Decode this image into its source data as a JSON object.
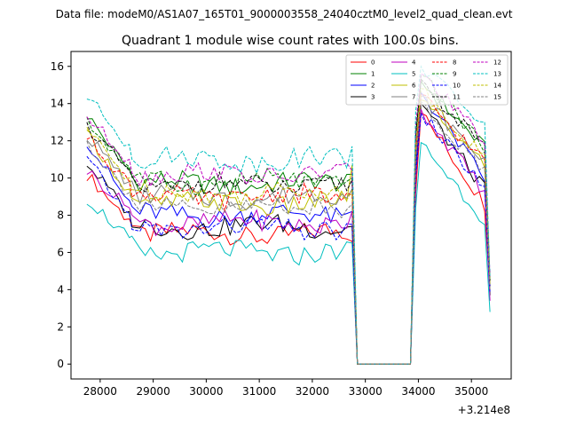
{
  "chart_data": {
    "type": "line",
    "suptitle": "Data file: modeM0/AS1A07_165T01_9000003558_24040cztM0_level2_quad_clean.evt",
    "title": "Quadrant 1 module wise count rates with 100.0s bins.",
    "xlabel": "",
    "ylabel": "",
    "x_offset_label": "+3.214e8",
    "xlim": [
      27450,
      35750
    ],
    "ylim": [
      -0.8,
      16.8
    ],
    "xticks": [
      28000,
      29000,
      30000,
      31000,
      32000,
      33000,
      34000,
      35000
    ],
    "xtick_labels": [
      "28000",
      "29000",
      "30000",
      "31000",
      "32000",
      "33000",
      "34000",
      "35000"
    ],
    "yticks": [
      0,
      2,
      4,
      6,
      8,
      10,
      12,
      14,
      16
    ],
    "ytick_labels": [
      "0",
      "2",
      "4",
      "6",
      "8",
      "10",
      "12",
      "14",
      "16"
    ],
    "legend_position": "top-right",
    "segment_times": {
      "seg1_start": 27750,
      "seg1_end": 32800,
      "bin": 100,
      "gap_start": 32850,
      "gap_end": 33850,
      "seg2_start": 33950,
      "seg2_end": 35350
    },
    "series": [
      {
        "name": "0",
        "color": "#ff0000",
        "dash": "solid",
        "base": 7.0,
        "start": 10.2,
        "dip": 4.3,
        "end_seg1": 6.6,
        "peak": 13.5,
        "end_seg2": 8.2,
        "last": 4.0
      },
      {
        "name": "1",
        "color": "#008000",
        "dash": "solid",
        "base": 9.7,
        "start": 13.4,
        "dip": 6.6,
        "end_seg1": 10.2,
        "peak": 15.2,
        "end_seg2": 11.3,
        "last": 4.2
      },
      {
        "name": "2",
        "color": "#0000ff",
        "dash": "solid",
        "base": 8.0,
        "start": 12.0,
        "dip": 5.4,
        "end_seg1": 8.2,
        "peak": 14.6,
        "end_seg2": 9.6,
        "last": 4.2
      },
      {
        "name": "3",
        "color": "#000000",
        "dash": "solid",
        "base": 7.4,
        "start": 10.8,
        "dip": 5.5,
        "end_seg1": 7.4,
        "peak": 14.0,
        "end_seg2": 9.0,
        "last": 3.7
      },
      {
        "name": "4",
        "color": "#bf00bf",
        "dash": "solid",
        "base": 7.6,
        "start": 10.4,
        "dip": 5.7,
        "end_seg1": 8.2,
        "peak": 13.7,
        "end_seg2": 8.9,
        "last": 3.4
      },
      {
        "name": "5",
        "color": "#00bfbf",
        "dash": "solid",
        "base": 6.0,
        "start": 8.9,
        "dip": 5.0,
        "end_seg1": 6.5,
        "peak": 11.9,
        "end_seg2": 7.4,
        "last": 2.8
      },
      {
        "name": "6",
        "color": "#bfbf00",
        "dash": "solid",
        "base": 8.6,
        "start": 12.4,
        "dip": 6.4,
        "end_seg1": 10.7,
        "peak": 14.2,
        "end_seg2": 10.4,
        "last": 4.3
      },
      {
        "name": "7",
        "color": "#808080",
        "dash": "solid",
        "base": 9.0,
        "start": 12.3,
        "dip": 6.4,
        "end_seg1": 9.4,
        "peak": 14.4,
        "end_seg2": 10.6,
        "last": 4.4
      },
      {
        "name": "8",
        "color": "#ff0000",
        "dash": "dashed",
        "base": 9.0,
        "start": 12.2,
        "dip": 6.2,
        "end_seg1": 9.1,
        "peak": 14.5,
        "end_seg2": 10.5,
        "last": 4.2
      },
      {
        "name": "9",
        "color": "#008000",
        "dash": "dashed",
        "base": 9.8,
        "start": 13.0,
        "dip": 6.9,
        "end_seg1": 10.0,
        "peak": 15.5,
        "end_seg2": 11.4,
        "last": 4.5
      },
      {
        "name": "10",
        "color": "#0000ff",
        "dash": "dashed",
        "base": 7.3,
        "start": 11.0,
        "dip": 5.6,
        "end_seg1": 7.5,
        "peak": 13.5,
        "end_seg2": 9.1,
        "last": 3.9
      },
      {
        "name": "11",
        "color": "#000000",
        "dash": "dashed",
        "base": 9.6,
        "start": 12.8,
        "dip": 6.8,
        "end_seg1": 9.9,
        "peak": 15.3,
        "end_seg2": 11.2,
        "last": 4.5
      },
      {
        "name": "12",
        "color": "#bf00bf",
        "dash": "dashed",
        "base": 10.2,
        "start": 13.3,
        "dip": 7.0,
        "end_seg1": 10.4,
        "peak": 15.6,
        "end_seg2": 11.8,
        "last": 4.7
      },
      {
        "name": "13",
        "color": "#00bfbf",
        "dash": "dashed",
        "base": 11.0,
        "start": 14.4,
        "dip": 7.4,
        "end_seg1": 11.7,
        "peak": 16.0,
        "end_seg2": 12.6,
        "last": 4.6
      },
      {
        "name": "14",
        "color": "#bfbf00",
        "dash": "dashed",
        "base": 9.2,
        "start": 12.6,
        "dip": 6.5,
        "end_seg1": 9.3,
        "peak": 14.8,
        "end_seg2": 10.7,
        "last": 4.3
      },
      {
        "name": "15",
        "color": "#808080",
        "dash": "dashed",
        "base": 8.4,
        "start": 11.9,
        "dip": 6.1,
        "end_seg1": 8.6,
        "peak": 14.1,
        "end_seg2": 10.0,
        "last": 4.0
      }
    ]
  }
}
